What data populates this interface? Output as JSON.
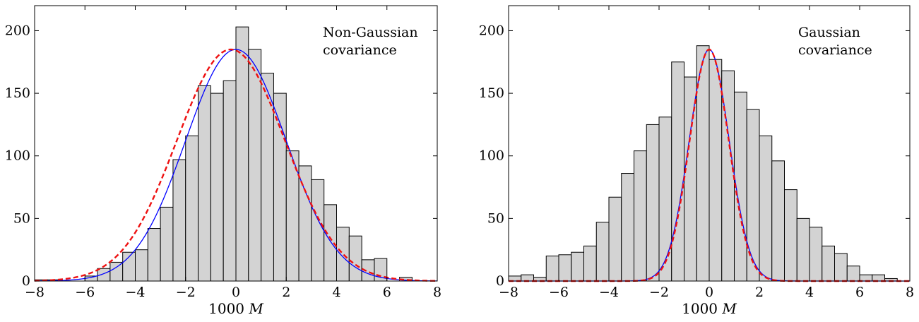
{
  "chart_data": [
    {
      "type": "bar",
      "panel": "left",
      "xlabel": "1000 M",
      "ylabel": "",
      "xlim": [
        -8,
        8
      ],
      "ylim": [
        0,
        220
      ],
      "xticks": [
        -8,
        -6,
        -4,
        -2,
        0,
        2,
        4,
        6,
        8
      ],
      "yticks": [
        0,
        50,
        100,
        150,
        200
      ],
      "grid": false,
      "annotation": [
        "Non-Gaussian",
        "covariance"
      ],
      "bin_edges": [
        -8,
        -7.5,
        -7,
        -6.5,
        -6,
        -5.5,
        -5,
        -4.5,
        -4,
        -3.5,
        -3,
        -2.5,
        -2,
        -1.5,
        -1,
        -0.5,
        0,
        0.5,
        1,
        1.5,
        2,
        2.5,
        3,
        3.5,
        4,
        4.5,
        5,
        5.5,
        6,
        6.5,
        7,
        7.5,
        8
      ],
      "values": [
        1,
        1,
        0,
        0,
        4,
        10,
        15,
        23,
        25,
        42,
        59,
        97,
        116,
        156,
        150,
        160,
        203,
        185,
        166,
        150,
        104,
        92,
        81,
        61,
        43,
        36,
        17,
        18,
        0,
        3,
        0,
        0
      ],
      "series": [
        {
          "style": "solid",
          "color": "#0000ff",
          "mean": 0,
          "sigma": 2.0,
          "peak": 185
        },
        {
          "style": "dashed",
          "color": "#ee1111",
          "mean": -0.2,
          "sigma": 2.15,
          "peak": 185
        }
      ]
    },
    {
      "type": "bar",
      "panel": "right",
      "xlabel": "1000 M",
      "ylabel": "",
      "xlim": [
        -8,
        8
      ],
      "ylim": [
        0,
        220
      ],
      "xticks": [
        -8,
        -6,
        -4,
        -2,
        0,
        2,
        4,
        6,
        8
      ],
      "yticks": [
        0,
        50,
        100,
        150,
        200
      ],
      "grid": false,
      "annotation": [
        "Gaussian",
        "covariance"
      ],
      "bin_edges": [
        -8,
        -7.5,
        -7,
        -6.5,
        -6,
        -5.5,
        -5,
        -4.5,
        -4,
        -3.5,
        -3,
        -2.5,
        -2,
        -1.5,
        -1,
        -0.5,
        0,
        0.5,
        1,
        1.5,
        2,
        2.5,
        3,
        3.5,
        4,
        4.5,
        5,
        5.5,
        6,
        6.5,
        7,
        7.5,
        8
      ],
      "values": [
        4,
        5,
        3,
        20,
        21,
        23,
        28,
        47,
        67,
        86,
        104,
        125,
        131,
        175,
        163,
        188,
        177,
        168,
        151,
        137,
        116,
        96,
        73,
        50,
        43,
        28,
        22,
        12,
        5,
        5,
        2,
        0
      ],
      "series": [
        {
          "style": "solid",
          "color": "#0000ff",
          "mean": 0,
          "sigma": 0.8,
          "peak": 185
        },
        {
          "style": "dashed",
          "color": "#ee1111",
          "mean": 0,
          "sigma": 0.78,
          "peak": 185
        }
      ]
    }
  ]
}
